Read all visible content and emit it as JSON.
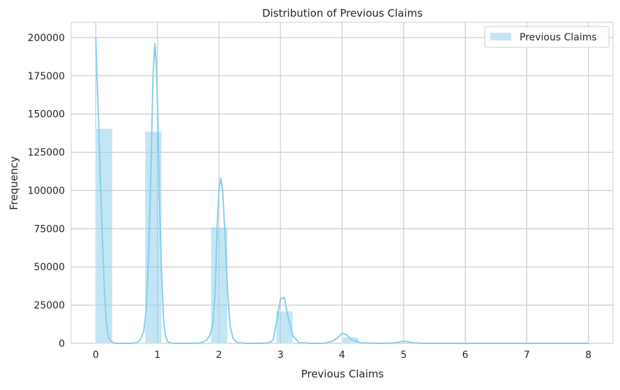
{
  "chart_data": {
    "type": "bar",
    "title": "Distribution of Previous Claims",
    "xlabel": "Previous Claims",
    "ylabel": "Frequency",
    "xlim": [
      -0.4,
      8.4
    ],
    "ylim": [
      0,
      210000
    ],
    "xticks": [
      0,
      1,
      2,
      3,
      4,
      5,
      6,
      7,
      8
    ],
    "yticks": [
      0,
      25000,
      50000,
      75000,
      100000,
      125000,
      150000,
      175000,
      200000
    ],
    "grid": true,
    "legend": {
      "position": "top-right",
      "entries": [
        "Previous Claims"
      ]
    },
    "bars": [
      {
        "x0": 0.0,
        "x1": 0.27,
        "value": 140500
      },
      {
        "x0": 0.8,
        "x1": 1.07,
        "value": 138500
      },
      {
        "x0": 1.87,
        "x1": 2.14,
        "value": 76000
      },
      {
        "x0": 2.93,
        "x1": 3.2,
        "value": 21000
      },
      {
        "x0": 4.0,
        "x1": 4.27,
        "value": 4000
      },
      {
        "x0": 5.07,
        "x1": 5.34,
        "value": 0
      },
      {
        "x0": 6.93,
        "x1": 7.2,
        "value": 0
      },
      {
        "x0": 7.73,
        "x1": 8.0,
        "value": 0
      }
    ],
    "series": [
      {
        "name": "Previous Claims",
        "type": "line",
        "x": [
          0.0,
          0.02,
          0.05,
          0.08,
          0.11,
          0.14,
          0.17,
          0.2,
          0.24,
          0.29,
          0.35,
          0.45,
          0.55,
          0.65,
          0.72,
          0.78,
          0.82,
          0.86,
          0.9,
          0.93,
          0.96,
          0.98,
          1.0,
          1.02,
          1.04,
          1.07,
          1.1,
          1.13,
          1.17,
          1.22,
          1.3,
          1.4,
          1.55,
          1.7,
          1.8,
          1.85,
          1.9,
          1.94,
          1.97,
          2.0,
          2.03,
          2.06,
          2.1,
          2.14,
          2.18,
          2.23,
          2.3,
          2.45,
          2.65,
          2.8,
          2.88,
          2.94,
          3.0,
          3.06,
          3.12,
          3.2,
          3.3,
          3.5,
          3.7,
          3.85,
          3.94,
          4.0,
          4.06,
          4.15,
          4.3,
          4.6,
          4.85,
          4.95,
          5.0,
          5.05,
          5.15,
          5.35,
          5.6,
          6.0,
          6.5,
          7.0,
          7.5,
          8.0
        ],
        "values": [
          200000,
          175000,
          140000,
          100000,
          65000,
          35000,
          15000,
          5000,
          1500,
          300,
          0,
          0,
          0,
          300,
          2000,
          8000,
          22000,
          60000,
          120000,
          175000,
          196000,
          185000,
          160000,
          125000,
          85000,
          45000,
          17000,
          5000,
          1000,
          200,
          0,
          0,
          0,
          300,
          2000,
          5000,
          12000,
          35000,
          75000,
          100000,
          108000,
          100000,
          70000,
          35000,
          12000,
          3000,
          500,
          0,
          0,
          300,
          2000,
          15000,
          29000,
          30000,
          18000,
          5000,
          500,
          0,
          0,
          1500,
          4000,
          6500,
          6000,
          2500,
          300,
          0,
          300,
          1000,
          1500,
          1200,
          400,
          0,
          0,
          0,
          0,
          0,
          0,
          0
        ]
      }
    ],
    "colors": {
      "bar": "#87ceeb",
      "line": "#87ceeb",
      "grid": "#cccccc",
      "axis": "#cccccc"
    }
  }
}
